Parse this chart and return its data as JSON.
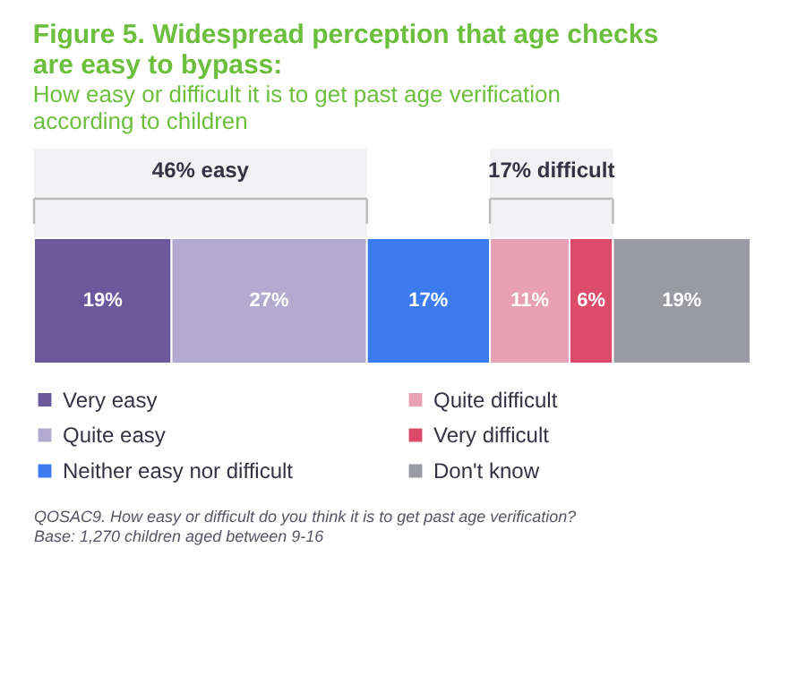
{
  "chart_data": {
    "type": "bar",
    "orientation": "horizontal",
    "stacked": true,
    "title": "Figure 5. Widespread perception that age checks are easy to bypass:",
    "subtitle": "How easy or difficult it is to get past age verification according to children",
    "categories": [
      null
    ],
    "series": [
      {
        "name": "Very easy",
        "color": "#6a5a9c",
        "values": [
          19
        ],
        "value_labels": [
          "19%"
        ]
      },
      {
        "name": "Quite easy",
        "color": "#b3aacf",
        "values": [
          27
        ],
        "value_labels": [
          "27%"
        ]
      },
      {
        "name": "Neither easy nor difficult",
        "color": "#3d7bf0",
        "values": [
          17
        ],
        "value_labels": [
          "17%"
        ]
      },
      {
        "name": "Quite difficult",
        "color": "#e8a0b4",
        "values": [
          11
        ],
        "value_labels": [
          "11%"
        ]
      },
      {
        "name": "Very difficult",
        "color": "#dd4b6b",
        "values": [
          6
        ],
        "value_labels": [
          "6%"
        ]
      },
      {
        "name": "Don't know",
        "color": "#9a9aa2",
        "values": [
          19
        ],
        "value_labels": [
          "19%"
        ]
      }
    ],
    "annotations": [
      "QOSAC9. How easy or difficult do you think it is to get past age verification?",
      "Base: 1,270 children aged between 9-16"
    ],
    "bands": [
      {
        "axis": "x",
        "from": 0,
        "to": 46,
        "label": "46% easy"
      },
      {
        "axis": "x",
        "from": 63,
        "to": 80,
        "label": "17% difficult"
      }
    ],
    "legend": "bottom"
  }
}
